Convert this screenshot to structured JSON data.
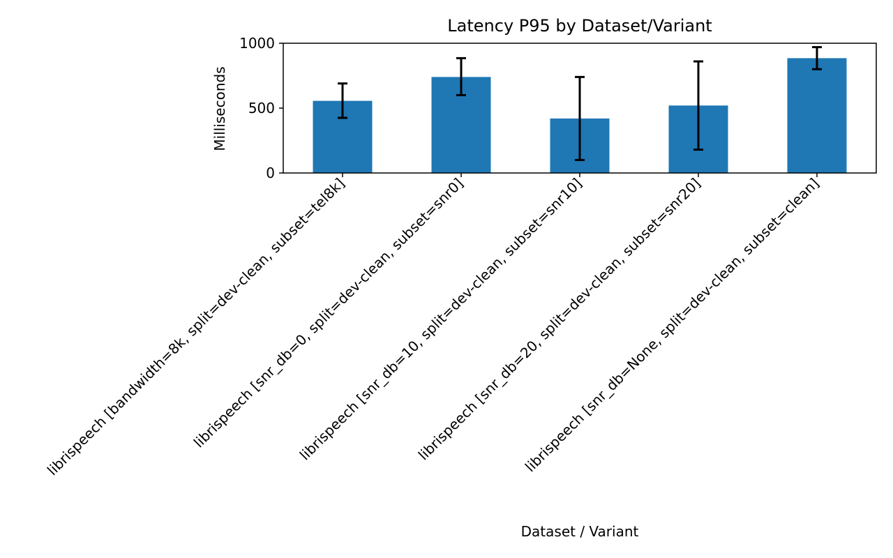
{
  "chart_data": {
    "type": "bar",
    "title": "Latency P95 by Dataset/Variant",
    "xlabel": "Dataset / Variant",
    "ylabel": "Milliseconds",
    "categories": [
      "librispeech [bandwidth=8k, split=dev-clean, subset=tel8k]",
      "librispeech [snr_db=0, split=dev-clean, subset=snr0]",
      "librispeech [snr_db=10, split=dev-clean, subset=snr10]",
      "librispeech [snr_db=20, split=dev-clean, subset=snr20]",
      "librispeech [snr_db=None, split=dev-clean, subset=clean]"
    ],
    "values": [
      556,
      740,
      420,
      520,
      885
    ],
    "error_low": [
      425,
      600,
      100,
      180,
      800
    ],
    "error_high": [
      690,
      885,
      740,
      860,
      970
    ],
    "ylim": [
      0,
      1000
    ],
    "yticks": [
      0,
      500,
      1000
    ],
    "grid": false,
    "bar_color": "#1f77b4",
    "error_color": "#000000"
  }
}
